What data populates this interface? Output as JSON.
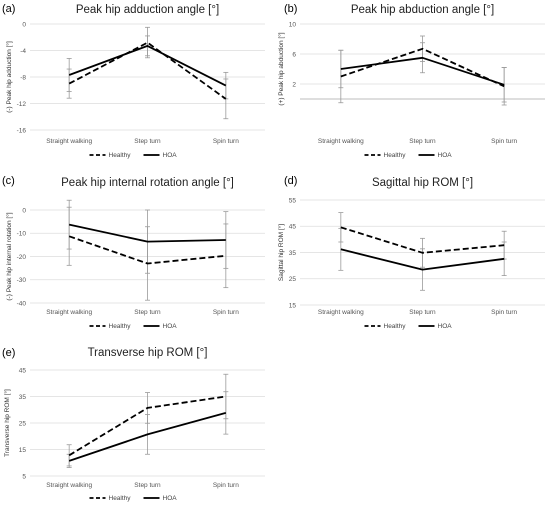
{
  "legend": {
    "healthy": "Healthy",
    "hoa": "HOA"
  },
  "chart_data": [
    {
      "panel": "(a)",
      "type": "line",
      "title": "Peak hip adduction angle [°]",
      "ylabel": "(-) Peak hip adduction [°]",
      "xlabel": "",
      "categories": [
        "Straight walking",
        "Step turn",
        "Spin turn"
      ],
      "ylim": [
        -16,
        0
      ],
      "yticks": [
        0,
        -4,
        -8,
        -12,
        -16
      ],
      "reference_line": null,
      "series": [
        {
          "name": "Healthy",
          "style": "dashed",
          "values": [
            -9.0,
            -2.8,
            -11.3
          ],
          "error": [
            2.2,
            2.3,
            3.0
          ]
        },
        {
          "name": "HOA",
          "style": "solid",
          "values": [
            -7.7,
            -3.3,
            -9.3
          ],
          "error": [
            2.5,
            1.5,
            2.0
          ]
        }
      ]
    },
    {
      "panel": "(b)",
      "type": "line",
      "title": "Peak hip abduction angle [°]",
      "ylabel": "(+) Peak hip abduction [°]",
      "xlabel": "",
      "categories": [
        "Straight walking",
        "Step turn",
        "Spin turn"
      ],
      "ylim": [
        -2,
        10
      ],
      "yticks": [
        10,
        6,
        2
      ],
      "reference_line": 0,
      "series": [
        {
          "name": "Healthy",
          "style": "dashed",
          "values": [
            3.0,
            6.7,
            1.7
          ],
          "error": [
            3.5,
            1.7,
            2.5
          ]
        },
        {
          "name": "HOA",
          "style": "solid",
          "values": [
            4.0,
            5.5,
            1.9
          ],
          "error": [
            2.5,
            2.0,
            2.3
          ]
        }
      ]
    },
    {
      "panel": "(c)",
      "type": "line",
      "title": "Peak hip internal rotation angle [°]",
      "ylabel": "(-) Peak hip internal rotation [°]",
      "xlabel": "",
      "categories": [
        "Straight walking",
        "Step turn",
        "Spin turn"
      ],
      "ylim": [
        -40,
        0
      ],
      "yticks": [
        0,
        -10,
        -20,
        -30,
        -40
      ],
      "reference_line": null,
      "series": [
        {
          "name": "Healthy",
          "style": "dashed",
          "values": [
            -11.3,
            -23.0,
            -19.7
          ],
          "error": [
            12.5,
            15.8,
            13.7
          ]
        },
        {
          "name": "HOA",
          "style": "solid",
          "values": [
            -6.3,
            -13.6,
            -12.9
          ],
          "error": [
            10.5,
            13.6,
            12.2
          ]
        }
      ]
    },
    {
      "panel": "(d)",
      "type": "line",
      "title": "Sagittal hip ROM [°]",
      "ylabel": "Sagittal hip ROM [°]",
      "xlabel": "",
      "categories": [
        "Straight walking",
        "Step turn",
        "Spin turn"
      ],
      "ylim": [
        15,
        55
      ],
      "yticks": [
        55,
        45,
        35,
        25,
        15
      ],
      "reference_line": null,
      "series": [
        {
          "name": "Healthy",
          "style": "dashed",
          "values": [
            44.6,
            34.9,
            37.8
          ],
          "error": [
            5.6,
            5.5,
            5.3
          ]
        },
        {
          "name": "HOA",
          "style": "solid",
          "values": [
            36.2,
            28.5,
            32.6
          ],
          "error": [
            8.0,
            7.9,
            6.4
          ]
        }
      ]
    },
    {
      "panel": "(e)",
      "type": "line",
      "title": "Transverse hip ROM [°]",
      "ylabel": "Transverse hip ROM [°]",
      "xlabel": "",
      "categories": [
        "Straight walking",
        "Step turn",
        "Spin turn"
      ],
      "ylim": [
        5,
        45
      ],
      "yticks": [
        45,
        35,
        25,
        15,
        5
      ],
      "reference_line": null,
      "series": [
        {
          "name": "Healthy",
          "style": "dashed",
          "values": [
            12.8,
            30.7,
            35.0
          ],
          "error": [
            4.0,
            5.8,
            8.4
          ]
        },
        {
          "name": "HOA",
          "style": "solid",
          "values": [
            10.7,
            20.7,
            28.8
          ],
          "error": [
            2.5,
            7.5,
            8.0
          ]
        }
      ]
    }
  ]
}
